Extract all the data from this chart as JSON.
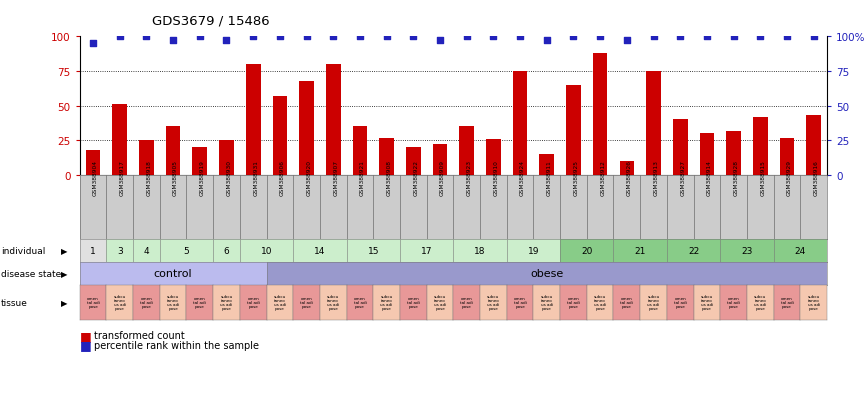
{
  "title": "GDS3679 / 15486",
  "samples": [
    "GSM388904",
    "GSM388917",
    "GSM388918",
    "GSM388905",
    "GSM388919",
    "GSM388930",
    "GSM388931",
    "GSM388906",
    "GSM388920",
    "GSM388907",
    "GSM388921",
    "GSM388908",
    "GSM388922",
    "GSM388909",
    "GSM388923",
    "GSM388910",
    "GSM388924",
    "GSM388911",
    "GSM388925",
    "GSM388912",
    "GSM388926",
    "GSM388913",
    "GSM388927",
    "GSM388914",
    "GSM388928",
    "GSM388915",
    "GSM388929",
    "GSM388916"
  ],
  "bar_values": [
    18,
    51,
    25,
    35,
    20,
    25,
    80,
    57,
    68,
    80,
    35,
    27,
    20,
    22,
    35,
    26,
    75,
    15,
    65,
    88,
    10,
    75,
    40,
    30,
    32,
    42,
    27,
    43
  ],
  "percentile_values": [
    95,
    100,
    100,
    97,
    100,
    97,
    100,
    100,
    100,
    100,
    100,
    100,
    100,
    97,
    100,
    100,
    100,
    97,
    100,
    100,
    97,
    100,
    100,
    100,
    100,
    100,
    100,
    100
  ],
  "bar_color": "#cc0000",
  "percentile_color": "#2222bb",
  "yticks": [
    0,
    25,
    50,
    75,
    100
  ],
  "indiv_data": [
    {
      "label": "1",
      "start": 0,
      "end": 1,
      "color": "#e0e0e0"
    },
    {
      "label": "3",
      "start": 1,
      "end": 2,
      "color": "#cceecc"
    },
    {
      "label": "4",
      "start": 2,
      "end": 3,
      "color": "#cceecc"
    },
    {
      "label": "5",
      "start": 3,
      "end": 5,
      "color": "#cceecc"
    },
    {
      "label": "6",
      "start": 5,
      "end": 6,
      "color": "#cceecc"
    },
    {
      "label": "10",
      "start": 6,
      "end": 8,
      "color": "#cceecc"
    },
    {
      "label": "14",
      "start": 8,
      "end": 10,
      "color": "#cceecc"
    },
    {
      "label": "15",
      "start": 10,
      "end": 12,
      "color": "#cceecc"
    },
    {
      "label": "17",
      "start": 12,
      "end": 14,
      "color": "#cceecc"
    },
    {
      "label": "18",
      "start": 14,
      "end": 16,
      "color": "#cceecc"
    },
    {
      "label": "19",
      "start": 16,
      "end": 18,
      "color": "#cceecc"
    },
    {
      "label": "20",
      "start": 18,
      "end": 20,
      "color": "#88cc88"
    },
    {
      "label": "21",
      "start": 20,
      "end": 22,
      "color": "#88cc88"
    },
    {
      "label": "22",
      "start": 22,
      "end": 24,
      "color": "#88cc88"
    },
    {
      "label": "23",
      "start": 24,
      "end": 26,
      "color": "#88cc88"
    },
    {
      "label": "24",
      "start": 26,
      "end": 28,
      "color": "#88cc88"
    }
  ],
  "disease_data": [
    {
      "label": "control",
      "start": 0,
      "end": 7,
      "color": "#bbbbee"
    },
    {
      "label": "obese",
      "start": 7,
      "end": 28,
      "color": "#9999cc"
    }
  ],
  "tissue_colors": [
    "#e89898",
    "#f5c8b0"
  ],
  "tissue_labels": [
    "omen\ntal adi\npose",
    "subcu\ntaneo\nus adi\npose"
  ],
  "sample_box_color": "#cccccc",
  "legend_bar": "transformed count",
  "legend_dot": "percentile rank within the sample",
  "label_names": [
    "individual",
    "disease state",
    "tissue"
  ],
  "n_samples": 28
}
